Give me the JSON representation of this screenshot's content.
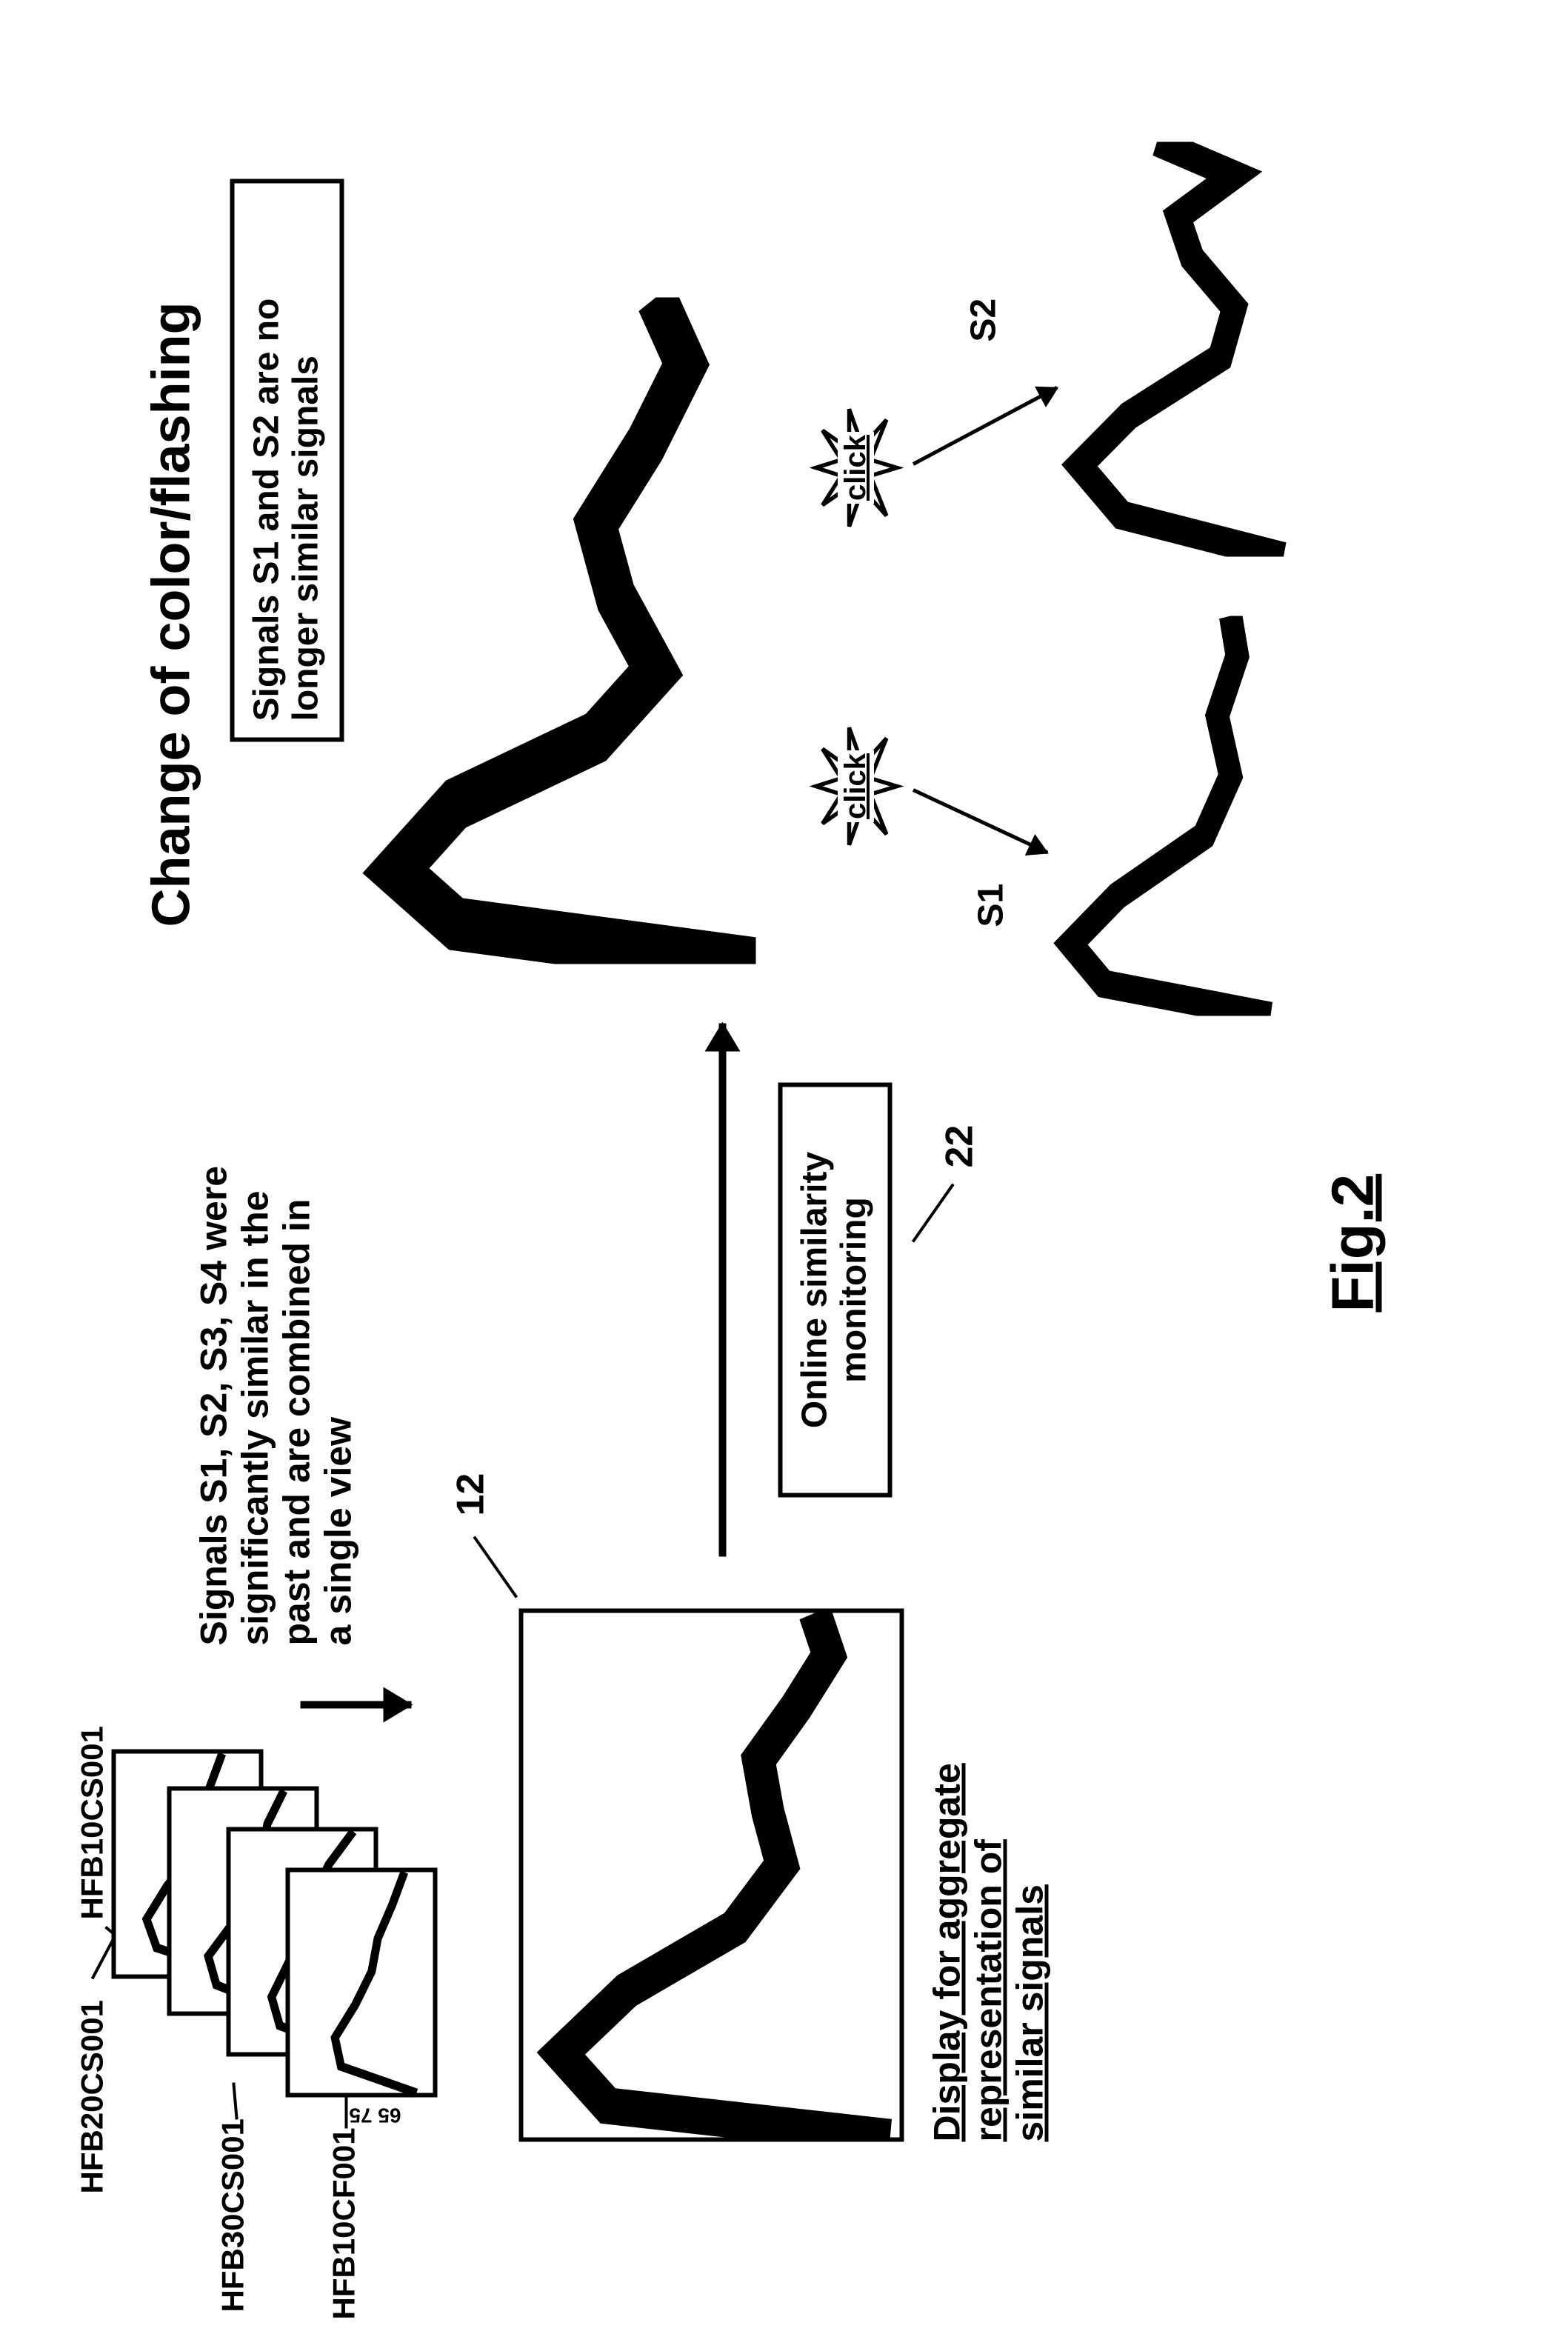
{
  "figure_label": "Fig.2",
  "title_right": "Change of color/flashing",
  "stack": {
    "labels": [
      "HFB20CS001",
      "HFB10CS001",
      "HFB30CS001",
      "HFB10CF001"
    ],
    "curves": [
      {
        "points": [
          [
            0,
            60
          ],
          [
            12,
            20
          ],
          [
            25,
            15
          ],
          [
            40,
            25
          ],
          [
            55,
            38
          ],
          [
            70,
            42
          ],
          [
            85,
            46
          ],
          [
            100,
            52
          ]
        ]
      },
      {
        "points": [
          [
            0,
            55
          ],
          [
            12,
            22
          ],
          [
            25,
            18
          ],
          [
            40,
            30
          ],
          [
            55,
            40
          ],
          [
            70,
            44
          ],
          [
            85,
            47
          ],
          [
            100,
            55
          ]
        ]
      },
      {
        "points": [
          [
            0,
            58
          ],
          [
            12,
            24
          ],
          [
            25,
            20
          ],
          [
            40,
            28
          ],
          [
            55,
            36
          ],
          [
            70,
            40
          ],
          [
            85,
            48
          ],
          [
            100,
            60
          ]
        ]
      },
      {
        "points": [
          [
            0,
            62
          ],
          [
            12,
            25
          ],
          [
            25,
            22
          ],
          [
            40,
            32
          ],
          [
            55,
            40
          ],
          [
            70,
            43
          ],
          [
            85,
            50
          ],
          [
            100,
            56
          ]
        ]
      }
    ],
    "yticks_pairs": [
      [
        "20",
        "20"
      ],
      [
        "20",
        "20"
      ],
      [
        "70",
        "70"
      ],
      [
        "60",
        "65 75"
      ]
    ],
    "stroke": "#000000",
    "stroke_width": 4
  },
  "aggregate_chart": {
    "ref": "12",
    "curve": [
      [
        0,
        78
      ],
      [
        6,
        18
      ],
      [
        16,
        8
      ],
      [
        28,
        22
      ],
      [
        40,
        45
      ],
      [
        52,
        55
      ],
      [
        62,
        52
      ],
      [
        72,
        50
      ],
      [
        82,
        58
      ],
      [
        92,
        65
      ],
      [
        100,
        62
      ]
    ],
    "stroke": "#000000",
    "stroke_width": 7
  },
  "caption_under_agg": "Display for aggregate\nrepresentation of\nsimilar signals",
  "desc_top_middle": "Signals S1, S2, S3, S4 were\nsignificantly similar in the\npast and are combined in\na single view",
  "online_box": {
    "text": "Online similarity\nmonitoring",
    "ref": "22"
  },
  "right_box": "Signals S1 and S2 are no\nlonger similar signals",
  "right_big_curve": {
    "curve": [
      [
        0,
        80
      ],
      [
        6,
        20
      ],
      [
        14,
        8
      ],
      [
        24,
        20
      ],
      [
        34,
        48
      ],
      [
        44,
        60
      ],
      [
        55,
        52
      ],
      [
        66,
        48
      ],
      [
        78,
        58
      ],
      [
        90,
        66
      ],
      [
        100,
        60
      ]
    ],
    "stroke": "#000000",
    "stroke_width": 8
  },
  "click_label": "click",
  "split_curves": {
    "S1": {
      "label": "S1",
      "curve": [
        [
          0,
          70
        ],
        [
          8,
          20
        ],
        [
          18,
          10
        ],
        [
          30,
          24
        ],
        [
          45,
          50
        ],
        [
          60,
          58
        ],
        [
          75,
          54
        ],
        [
          90,
          60
        ],
        [
          100,
          58
        ]
      ]
    },
    "S2": {
      "label": "S2",
      "curve": [
        [
          0,
          70
        ],
        [
          10,
          24
        ],
        [
          22,
          12
        ],
        [
          34,
          26
        ],
        [
          48,
          52
        ],
        [
          60,
          56
        ],
        [
          72,
          44
        ],
        [
          82,
          40
        ],
        [
          92,
          56
        ],
        [
          100,
          34
        ]
      ]
    },
    "stroke": "#000000",
    "stroke_width": 7
  },
  "colors": {
    "fg": "#000000",
    "bg": "#ffffff"
  }
}
